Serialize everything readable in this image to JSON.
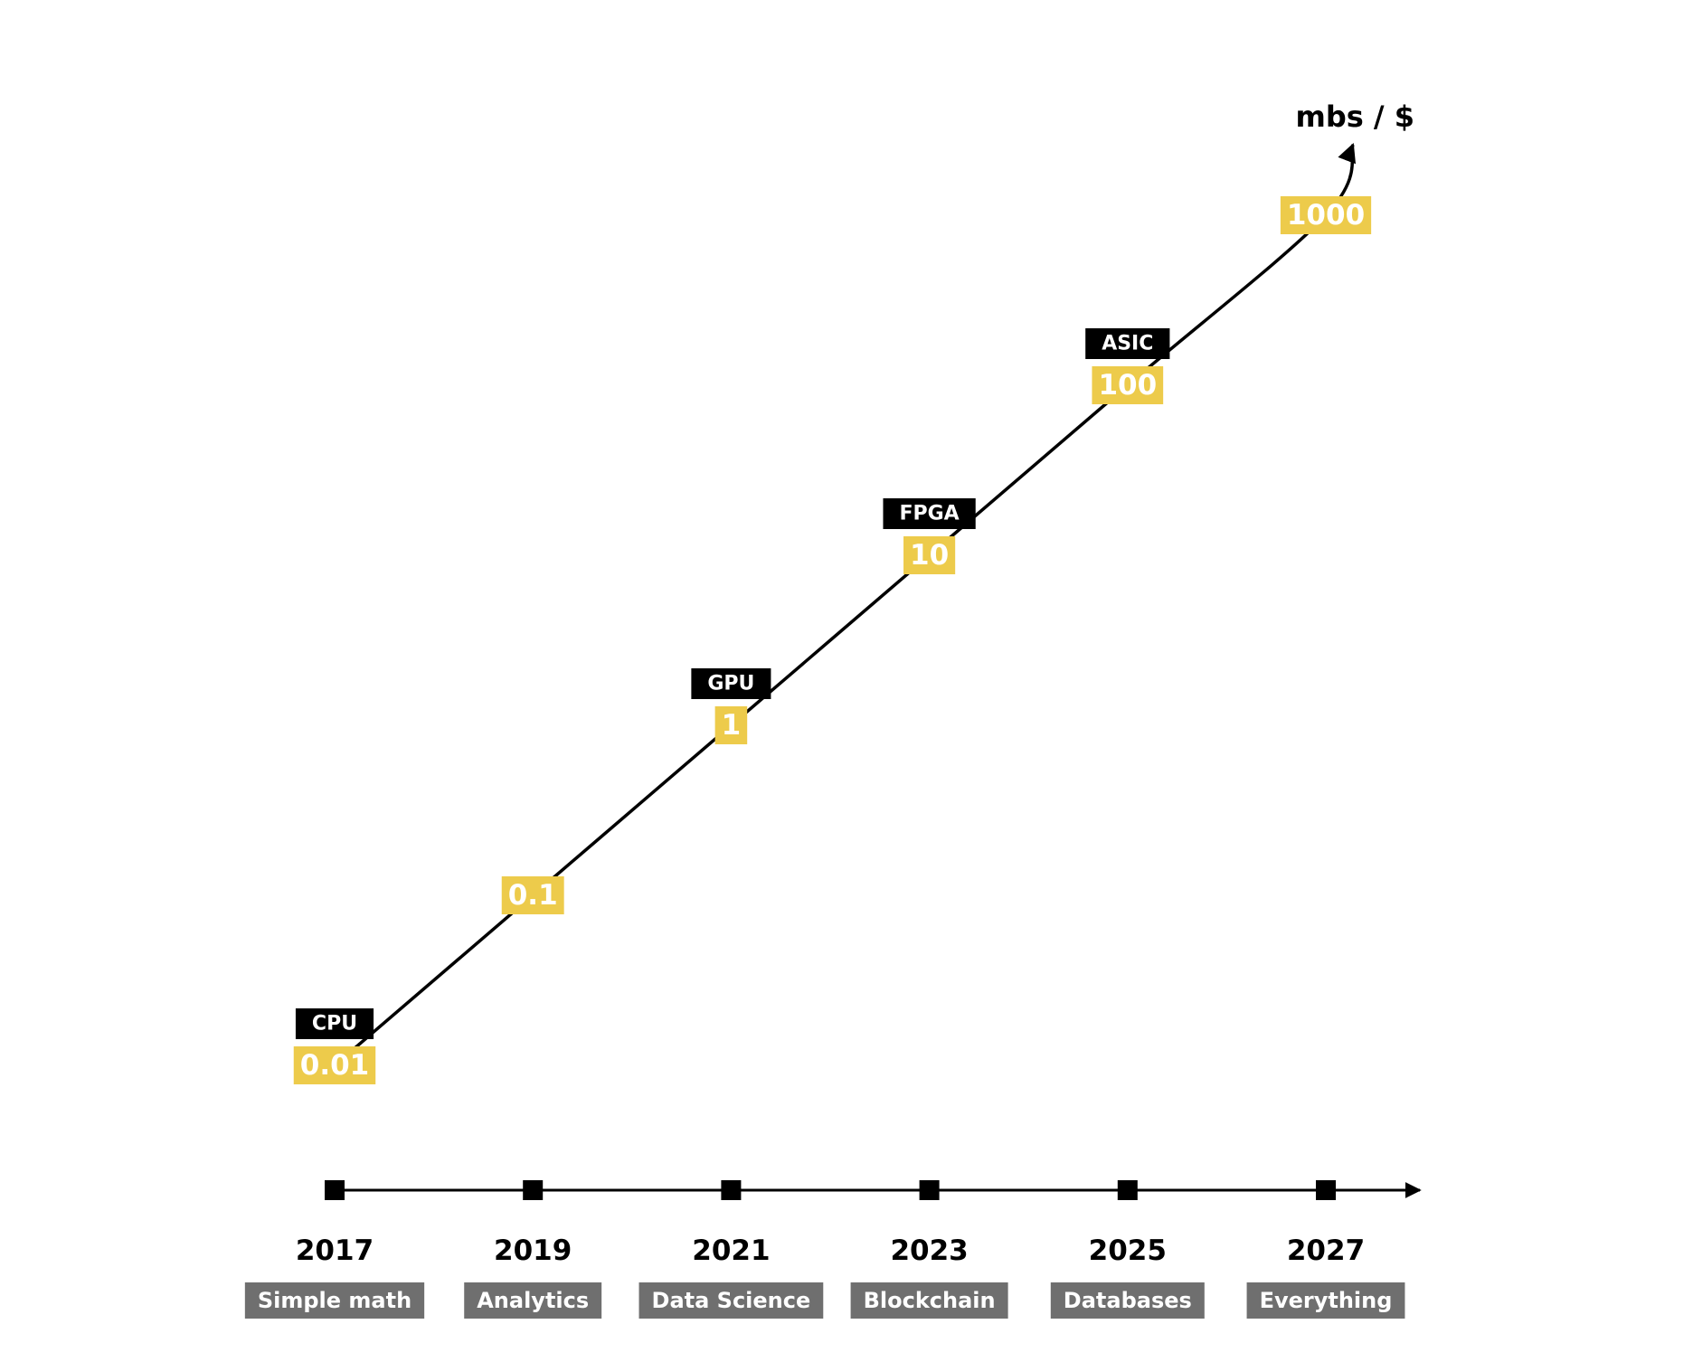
{
  "chart_data": {
    "type": "line",
    "title": "",
    "xlabel": "",
    "ylabel": "mbs / $",
    "y_scale": "log",
    "ylim": [
      0.01,
      1000
    ],
    "x": [
      2017,
      2019,
      2021,
      2023,
      2025,
      2027
    ],
    "tick_labels": [
      "2017",
      "2019",
      "2021",
      "2023",
      "2025",
      "2027"
    ],
    "values": [
      0.01,
      0.1,
      1,
      10,
      100,
      1000
    ],
    "value_labels": [
      "0.01",
      "0.1",
      "1",
      "10",
      "100",
      "1000"
    ],
    "tech_labels": [
      "CPU",
      "",
      "GPU",
      "FPGA",
      "ASIC",
      ""
    ],
    "categories": [
      "Simple math",
      "Analytics",
      "Data Science",
      "Blockchain",
      "Databases",
      "Everything"
    ],
    "grid": false,
    "legend": "none",
    "colors": {
      "line": "#000000",
      "value_box": "#EDCB4B",
      "tech_box": "#000000",
      "category_box": "#6F6F6F",
      "axis": "#000000"
    }
  }
}
